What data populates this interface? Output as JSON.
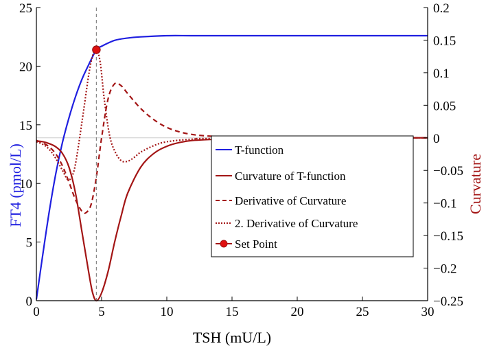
{
  "chart_data": {
    "type": "line",
    "xlabel": "TSH (mU/L)",
    "ylabel_left": "FT4 (pmol/L)",
    "ylabel_right": "Curvature",
    "xlim": [
      0,
      30
    ],
    "ylim_left": [
      0,
      25
    ],
    "ylim_right": [
      -0.25,
      0.2
    ],
    "x_ticks": [
      "0",
      "5",
      "10",
      "15",
      "20",
      "25",
      "30"
    ],
    "y_left_ticks": [
      "0",
      "5",
      "10",
      "15",
      "20",
      "25"
    ],
    "y_right_ticks": [
      "-0.25",
      "-0.2",
      "-0.15",
      "-0.1",
      "-0.05",
      "0",
      "0.05",
      "0.1",
      "0.15",
      "0.2"
    ],
    "series": [
      {
        "name": "T-function",
        "axis": "left",
        "color": "#1f1fe0",
        "style": "solid",
        "x": [
          0,
          0.5,
          1,
          1.5,
          2,
          2.5,
          3,
          3.5,
          4,
          4.6,
          5,
          6,
          7,
          8,
          10,
          12,
          15,
          20,
          25,
          30
        ],
        "y": [
          0.1,
          4.0,
          7.7,
          10.9,
          13.5,
          15.6,
          17.4,
          18.9,
          20.1,
          21.4,
          21.7,
          22.2,
          22.4,
          22.5,
          22.6,
          22.6,
          22.6,
          22.6,
          22.6,
          22.6
        ]
      },
      {
        "name": "Curvature of T-function",
        "axis": "right",
        "color": "#a31515",
        "style": "solid",
        "x": [
          0,
          0.5,
          1,
          1.5,
          2,
          2.5,
          3,
          3.5,
          4,
          4.3,
          4.6,
          5,
          5.5,
          6,
          6.5,
          7,
          8,
          9,
          10,
          11,
          12,
          14,
          16,
          20,
          25,
          30
        ],
        "y": [
          -0.005,
          -0.006,
          -0.009,
          -0.014,
          -0.024,
          -0.045,
          -0.085,
          -0.145,
          -0.205,
          -0.237,
          -0.25,
          -0.238,
          -0.205,
          -0.16,
          -0.12,
          -0.085,
          -0.045,
          -0.024,
          -0.013,
          -0.007,
          -0.004,
          -0.002,
          -0.001,
          0,
          0,
          0
        ]
      },
      {
        "name": "Derivative of Curvature",
        "axis": "right",
        "color": "#a31515",
        "style": "dashed",
        "x": [
          0,
          0.5,
          1,
          1.5,
          2,
          2.5,
          3,
          3.5,
          3.8,
          4.2,
          4.6,
          5,
          5.5,
          6,
          6.5,
          7,
          8,
          9,
          10,
          11,
          12,
          13,
          14,
          15,
          18,
          20,
          30
        ],
        "y": [
          -0.004,
          -0.008,
          -0.014,
          -0.025,
          -0.043,
          -0.068,
          -0.095,
          -0.113,
          -0.115,
          -0.102,
          -0.06,
          0.0,
          0.06,
          0.083,
          0.08,
          0.068,
          0.045,
          0.028,
          0.016,
          0.009,
          0.005,
          0.003,
          0.002,
          0.001,
          0,
          0,
          0
        ]
      },
      {
        "name": "2. Derivative of Curvature",
        "axis": "right",
        "color": "#a31515",
        "style": "dotted",
        "x": [
          0,
          0.5,
          1,
          1.5,
          2,
          2.4,
          2.7,
          3,
          3.5,
          4,
          4.3,
          4.6,
          4.9,
          5.2,
          5.6,
          6,
          6.5,
          7,
          7.5,
          8,
          9,
          10,
          12,
          14,
          30
        ],
        "y": [
          -0.006,
          -0.01,
          -0.018,
          -0.032,
          -0.05,
          -0.064,
          -0.06,
          -0.04,
          0.025,
          0.095,
          0.125,
          0.137,
          0.115,
          0.06,
          0.005,
          -0.02,
          -0.035,
          -0.036,
          -0.03,
          -0.022,
          -0.012,
          -0.006,
          -0.002,
          -0.001,
          0
        ]
      }
    ],
    "set_point": {
      "name": "Set Point",
      "x": 4.6,
      "y": 21.4,
      "color": "#e01010"
    },
    "vertical_line_x": 4.6,
    "legend": {
      "position": "center-right",
      "entries": [
        "T-function",
        "Curvature of T-function",
        "Derivative of Curvature",
        "2. Derivative of Curvature",
        "Set Point"
      ]
    },
    "colors": {
      "left_axis": "#1f1fe0",
      "right_axis": "#a31515",
      "zero_line": "#cccccc",
      "guide_line": "#888888"
    }
  }
}
